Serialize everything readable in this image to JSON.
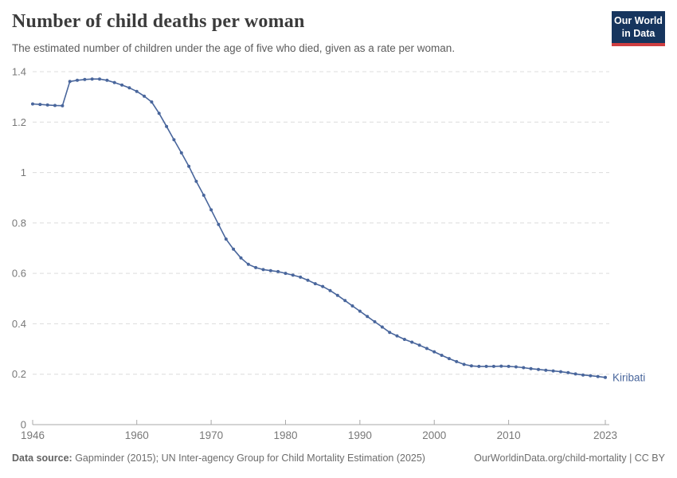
{
  "header": {
    "title": "Number of child deaths per woman",
    "subtitle": "The estimated number of children under the age of five who died, given as a rate per woman."
  },
  "logo": {
    "line1": "Our World",
    "line2": "in Data",
    "bg_color": "#16355e",
    "bar_color": "#cf3e41"
  },
  "chart_data": {
    "type": "line",
    "title": "Number of child deaths per woman",
    "xlabel": "",
    "ylabel": "",
    "xlim": [
      1946,
      2023
    ],
    "ylim": [
      0,
      1.4
    ],
    "x_ticks": [
      1946,
      1960,
      1970,
      1980,
      1990,
      2000,
      2010,
      2023
    ],
    "y_ticks": [
      0,
      0.2,
      0.4,
      0.6,
      0.8,
      1,
      1.2,
      1.4
    ],
    "grid": "horizontal-dashed",
    "legend_position": "end-of-line-label",
    "series": [
      {
        "name": "Kiribati",
        "color": "#49669c",
        "years": [
          1946,
          1947,
          1948,
          1949,
          1950,
          1951,
          1952,
          1953,
          1954,
          1955,
          1956,
          1957,
          1958,
          1959,
          1960,
          1961,
          1962,
          1963,
          1964,
          1965,
          1966,
          1967,
          1968,
          1969,
          1970,
          1971,
          1972,
          1973,
          1974,
          1975,
          1976,
          1977,
          1978,
          1979,
          1980,
          1981,
          1982,
          1983,
          1984,
          1985,
          1986,
          1987,
          1988,
          1989,
          1990,
          1991,
          1992,
          1993,
          1994,
          1995,
          1996,
          1997,
          1998,
          1999,
          2000,
          2001,
          2002,
          2003,
          2004,
          2005,
          2006,
          2007,
          2008,
          2009,
          2010,
          2011,
          2012,
          2013,
          2014,
          2015,
          2016,
          2017,
          2018,
          2019,
          2020,
          2021,
          2022,
          2023
        ],
        "values": [
          1.272,
          1.27,
          1.268,
          1.266,
          1.265,
          1.361,
          1.366,
          1.369,
          1.371,
          1.371,
          1.366,
          1.357,
          1.347,
          1.336,
          1.322,
          1.303,
          1.28,
          1.235,
          1.183,
          1.13,
          1.078,
          1.025,
          0.965,
          0.91,
          0.852,
          0.794,
          0.736,
          0.696,
          0.661,
          0.636,
          0.623,
          0.615,
          0.611,
          0.607,
          0.6,
          0.593,
          0.585,
          0.573,
          0.559,
          0.548,
          0.532,
          0.513,
          0.492,
          0.471,
          0.45,
          0.429,
          0.408,
          0.387,
          0.366,
          0.352,
          0.338,
          0.327,
          0.315,
          0.302,
          0.289,
          0.275,
          0.262,
          0.25,
          0.239,
          0.233,
          0.231,
          0.231,
          0.231,
          0.232,
          0.231,
          0.229,
          0.226,
          0.222,
          0.219,
          0.216,
          0.213,
          0.21,
          0.206,
          0.201,
          0.197,
          0.194,
          0.191,
          0.187
        ]
      }
    ],
    "colors": {
      "grid": "#dcdcdc",
      "axis": "#a8a8a8",
      "tick_label": "#787878"
    }
  },
  "footer": {
    "source_label": "Data source:",
    "source_text": " Gapminder (2015); UN Inter-agency Group for Child Mortality Estimation (2025)",
    "link_text": "OurWorldinData.org/child-mortality | CC BY"
  }
}
